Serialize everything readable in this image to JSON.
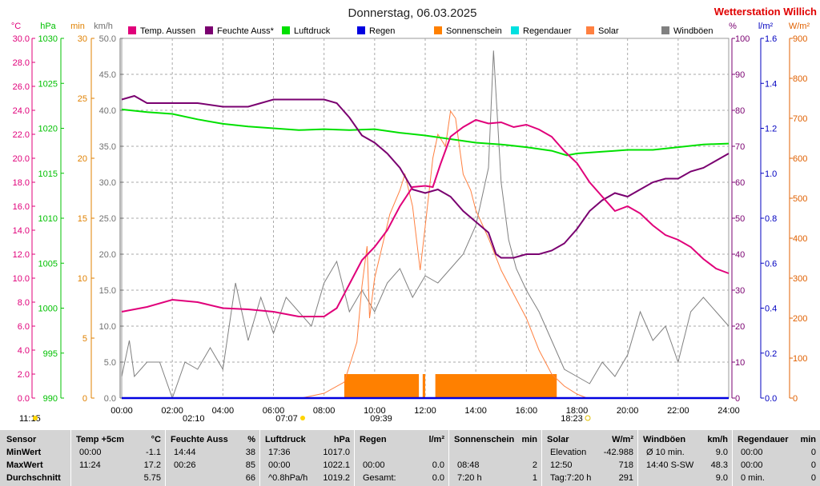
{
  "header": {
    "title": "Donnerstag, 06.03.2025",
    "station": "Wetterstation Willich"
  },
  "legend": [
    {
      "label": "Temp. Aussen",
      "color": "#e0007a"
    },
    {
      "label": "Feuchte Auss*",
      "color": "#7a0070"
    },
    {
      "label": "Luftdruck",
      "color": "#00e000"
    },
    {
      "label": "Regen",
      "color": "#0000e0"
    },
    {
      "label": "Sonnenschein",
      "color": "#ff8000"
    },
    {
      "label": "Regendauer",
      "color": "#00e0e0"
    },
    {
      "label": "Solar",
      "color": "#ff8040"
    },
    {
      "label": "Windböen",
      "color": "#808080"
    }
  ],
  "axes": {
    "temp": {
      "unit": "°C",
      "color": "#e0007a",
      "ticks": [
        "30.0",
        "28.0",
        "26.0",
        "24.0",
        "22.0",
        "20.0",
        "18.0",
        "16.0",
        "14.0",
        "12.0",
        "10.0",
        "8.0",
        "6.0",
        "4.0",
        "2.0",
        "0.0"
      ]
    },
    "press": {
      "unit": "hPa",
      "color": "#00c000",
      "ticks": [
        "1030",
        "1025",
        "1020",
        "1015",
        "1010",
        "1005",
        "1000",
        "995",
        "990"
      ]
    },
    "min": {
      "unit": "min",
      "color": "#e08000",
      "ticks": [
        "30",
        "25",
        "20",
        "15",
        "10",
        "5",
        "0"
      ]
    },
    "kmh": {
      "unit": "km/h",
      "color": "#707070",
      "ticks": [
        "50.0",
        "45.0",
        "40.0",
        "35.0",
        "30.0",
        "25.0",
        "20.0",
        "15.0",
        "10.0",
        "5.0",
        "0.0"
      ]
    },
    "hum": {
      "unit": "%",
      "color": "#7a0070",
      "ticks": [
        "100",
        "90",
        "80",
        "70",
        "60",
        "50",
        "40",
        "30",
        "20",
        "10",
        "0"
      ]
    },
    "rain": {
      "unit": "l/m²",
      "color": "#0000c0",
      "ticks": [
        "1.6",
        "1.4",
        "1.2",
        "1.0",
        "0.8",
        "0.6",
        "0.4",
        "0.2",
        "0.0"
      ]
    },
    "solar": {
      "unit": "W/m²",
      "color": "#e06000",
      "ticks": [
        "900",
        "800",
        "700",
        "600",
        "500",
        "400",
        "300",
        "200",
        "100",
        "0"
      ]
    },
    "time": {
      "ticks": [
        "00:00",
        "02:00",
        "04:00",
        "06:00",
        "08:00",
        "10:00",
        "12:00",
        "14:00",
        "16:00",
        "18:00",
        "20:00",
        "22:00",
        "24:00"
      ]
    }
  },
  "markers": {
    "moonrise": "11:15",
    "moonset": "02:10",
    "sunrise": "07:07",
    "noon": "09:39",
    "sunset": "18:23"
  },
  "chart_data": {
    "type": "line",
    "title": "Donnerstag, 06.03.2025",
    "xlim": [
      0,
      24
    ],
    "grid": true,
    "legend_position": "top",
    "series": [
      {
        "name": "Temp. Aussen",
        "axis": "temp",
        "ylim": [
          0,
          30
        ],
        "points": [
          [
            0,
            7.2
          ],
          [
            1,
            7.6
          ],
          [
            2,
            8.2
          ],
          [
            3,
            8.0
          ],
          [
            4,
            7.5
          ],
          [
            5,
            7.4
          ],
          [
            6,
            7.2
          ],
          [
            7,
            6.8
          ],
          [
            8,
            6.8
          ],
          [
            8.5,
            7.5
          ],
          [
            9,
            9.5
          ],
          [
            9.5,
            11.5
          ],
          [
            10,
            12.6
          ],
          [
            10.5,
            14.0
          ],
          [
            11,
            16.0
          ],
          [
            11.5,
            17.6
          ],
          [
            12,
            17.7
          ],
          [
            12.3,
            17.6
          ],
          [
            12.6,
            19.5
          ],
          [
            13,
            21.8
          ],
          [
            13.5,
            22.6
          ],
          [
            14,
            23.2
          ],
          [
            14.5,
            22.9
          ],
          [
            15,
            23.0
          ],
          [
            15.5,
            22.6
          ],
          [
            16,
            22.8
          ],
          [
            16.5,
            22.4
          ],
          [
            17,
            21.8
          ],
          [
            17.5,
            20.6
          ],
          [
            18,
            19.6
          ],
          [
            18.5,
            18.0
          ],
          [
            19,
            16.8
          ],
          [
            19.5,
            15.6
          ],
          [
            20,
            16.0
          ],
          [
            20.5,
            15.4
          ],
          [
            21,
            14.4
          ],
          [
            21.5,
            13.6
          ],
          [
            22,
            13.2
          ],
          [
            22.5,
            12.6
          ],
          [
            23,
            11.6
          ],
          [
            23.5,
            10.8
          ],
          [
            24,
            10.4
          ]
        ]
      },
      {
        "name": "Feuchte Auss*",
        "axis": "hum",
        "ylim": [
          0,
          100
        ],
        "points": [
          [
            0,
            83
          ],
          [
            0.5,
            84
          ],
          [
            1,
            82
          ],
          [
            1.5,
            82
          ],
          [
            2,
            82
          ],
          [
            3,
            82
          ],
          [
            4,
            81
          ],
          [
            5,
            81
          ],
          [
            5.5,
            82
          ],
          [
            6,
            83
          ],
          [
            7,
            83
          ],
          [
            8,
            83
          ],
          [
            8.5,
            82
          ],
          [
            9,
            78
          ],
          [
            9.5,
            73
          ],
          [
            10,
            71
          ],
          [
            10.5,
            68
          ],
          [
            11,
            64
          ],
          [
            11.5,
            58
          ],
          [
            12,
            57
          ],
          [
            12.5,
            58
          ],
          [
            13,
            56
          ],
          [
            13.5,
            52
          ],
          [
            14,
            49
          ],
          [
            14.5,
            46
          ],
          [
            14.8,
            40
          ],
          [
            15,
            39
          ],
          [
            15.5,
            39
          ],
          [
            16,
            40
          ],
          [
            16.5,
            40
          ],
          [
            17,
            41
          ],
          [
            17.5,
            43
          ],
          [
            18,
            47
          ],
          [
            18.5,
            52
          ],
          [
            19,
            55
          ],
          [
            19.5,
            57
          ],
          [
            20,
            56
          ],
          [
            20.5,
            58
          ],
          [
            21,
            60
          ],
          [
            21.5,
            61
          ],
          [
            22,
            61
          ],
          [
            22.5,
            63
          ],
          [
            23,
            64
          ],
          [
            23.5,
            66
          ],
          [
            24,
            68
          ]
        ]
      },
      {
        "name": "Luftdruck",
        "axis": "press",
        "ylim": [
          990,
          1030
        ],
        "points": [
          [
            0,
            1022.1
          ],
          [
            1,
            1021.8
          ],
          [
            2,
            1021.6
          ],
          [
            3,
            1021.0
          ],
          [
            4,
            1020.5
          ],
          [
            5,
            1020.2
          ],
          [
            6,
            1020.0
          ],
          [
            7,
            1019.8
          ],
          [
            8,
            1019.9
          ],
          [
            9,
            1019.8
          ],
          [
            10,
            1019.9
          ],
          [
            11,
            1019.5
          ],
          [
            12,
            1019.2
          ],
          [
            13,
            1018.8
          ],
          [
            14,
            1018.4
          ],
          [
            15,
            1018.2
          ],
          [
            16,
            1017.9
          ],
          [
            17,
            1017.5
          ],
          [
            17.6,
            1017.0
          ],
          [
            18,
            1017.2
          ],
          [
            19,
            1017.4
          ],
          [
            20,
            1017.6
          ],
          [
            21,
            1017.6
          ],
          [
            22,
            1017.9
          ],
          [
            23,
            1018.2
          ],
          [
            24,
            1018.3
          ]
        ]
      },
      {
        "name": "Solar",
        "axis": "solar",
        "ylim": [
          0,
          900
        ],
        "points": [
          [
            7.1,
            0
          ],
          [
            8,
            12
          ],
          [
            8.8,
            40
          ],
          [
            9,
            80
          ],
          [
            9.3,
            140
          ],
          [
            9.5,
            280
          ],
          [
            9.7,
            380
          ],
          [
            9.8,
            200
          ],
          [
            10,
            300
          ],
          [
            10.3,
            380
          ],
          [
            10.6,
            460
          ],
          [
            11,
            520
          ],
          [
            11.2,
            560
          ],
          [
            11.5,
            480
          ],
          [
            11.8,
            320
          ],
          [
            12,
            430
          ],
          [
            12.3,
            600
          ],
          [
            12.5,
            660
          ],
          [
            12.8,
            630
          ],
          [
            13,
            718
          ],
          [
            13.2,
            700
          ],
          [
            13.5,
            560
          ],
          [
            13.8,
            520
          ],
          [
            14,
            470
          ],
          [
            14.5,
            400
          ],
          [
            15,
            320
          ],
          [
            15.5,
            260
          ],
          [
            16,
            200
          ],
          [
            16.5,
            120
          ],
          [
            17,
            60
          ],
          [
            17.5,
            30
          ],
          [
            18,
            10
          ],
          [
            18.4,
            0
          ]
        ]
      },
      {
        "name": "Windböen",
        "axis": "kmh",
        "ylim": [
          0,
          50
        ],
        "points": [
          [
            0,
            3
          ],
          [
            0.3,
            8
          ],
          [
            0.5,
            3
          ],
          [
            1,
            5
          ],
          [
            1.5,
            5
          ],
          [
            2,
            0
          ],
          [
            2.5,
            5
          ],
          [
            3,
            4
          ],
          [
            3.5,
            7
          ],
          [
            4,
            4
          ],
          [
            4.5,
            16
          ],
          [
            5,
            8
          ],
          [
            5.5,
            14
          ],
          [
            6,
            9
          ],
          [
            6.5,
            14
          ],
          [
            7,
            12
          ],
          [
            7.5,
            10
          ],
          [
            8,
            16
          ],
          [
            8.5,
            19
          ],
          [
            9,
            12
          ],
          [
            9.5,
            15
          ],
          [
            10,
            12
          ],
          [
            10.5,
            16
          ],
          [
            11,
            18
          ],
          [
            11.5,
            14
          ],
          [
            12,
            17
          ],
          [
            12.5,
            16
          ],
          [
            13,
            18
          ],
          [
            13.5,
            20
          ],
          [
            14,
            24
          ],
          [
            14.5,
            32
          ],
          [
            14.7,
            48.3
          ],
          [
            15,
            30
          ],
          [
            15.3,
            22
          ],
          [
            15.6,
            18
          ],
          [
            16,
            15
          ],
          [
            16.5,
            12
          ],
          [
            17,
            8
          ],
          [
            17.5,
            4
          ],
          [
            18,
            3
          ],
          [
            18.5,
            2
          ],
          [
            19,
            5
          ],
          [
            19.5,
            3
          ],
          [
            20,
            6
          ],
          [
            20.5,
            12
          ],
          [
            21,
            8
          ],
          [
            21.5,
            10
          ],
          [
            22,
            5
          ],
          [
            22.5,
            12
          ],
          [
            23,
            14
          ],
          [
            23.5,
            12
          ],
          [
            24,
            10
          ]
        ]
      },
      {
        "name": "Regen",
        "axis": "rain",
        "ylim": [
          0,
          1.6
        ],
        "points": [
          [
            0,
            0
          ],
          [
            24,
            0
          ]
        ]
      },
      {
        "name": "Regendauer",
        "axis": "min",
        "ylim": [
          0,
          30
        ],
        "points": [
          [
            0,
            0
          ],
          [
            24,
            0
          ]
        ]
      }
    ],
    "sunshine_intervals": [
      [
        8.8,
        11.75
      ],
      [
        11.9,
        12.0
      ],
      [
        12.4,
        17.2
      ]
    ],
    "sunshine_level_min": 2
  },
  "table": {
    "row_labels": [
      "Sensor",
      "MinWert",
      "MaxWert",
      "Durchschnitt"
    ],
    "sections": [
      {
        "title": "Temp +5cm",
        "unit": "°C",
        "rows": [
          [
            "00:00",
            "-1.1"
          ],
          [
            "11:24",
            "17.2"
          ],
          [
            "",
            "5.75"
          ]
        ]
      },
      {
        "title": "Feuchte Auss",
        "unit": "%",
        "rows": [
          [
            "14:44",
            "38"
          ],
          [
            "00:26",
            "85"
          ],
          [
            "",
            "66"
          ]
        ]
      },
      {
        "title": "Luftdruck",
        "unit": "hPa",
        "rows": [
          [
            "17:36",
            "1017.0"
          ],
          [
            "00:00",
            "1022.1"
          ],
          [
            "^0.8hPa/h",
            "1019.2"
          ]
        ]
      },
      {
        "title": "Regen",
        "unit": "l/m²",
        "rows": [
          [
            "",
            ""
          ],
          [
            "00:00",
            "0.0"
          ],
          [
            "Gesamt:",
            "0.0"
          ]
        ]
      },
      {
        "title": "Sonnenschein",
        "unit": "min",
        "rows": [
          [
            "",
            ""
          ],
          [
            "08:48",
            "2"
          ],
          [
            "7:20 h",
            "1"
          ]
        ]
      },
      {
        "title": "Solar",
        "unit": "W/m²",
        "rows": [
          [
            "Elevation",
            "-42.988"
          ],
          [
            "12:50",
            "718"
          ],
          [
            "Tag:7:20 h",
            "291"
          ]
        ]
      },
      {
        "title": "Windböen",
        "unit": "km/h",
        "rows": [
          [
            "Ø 10 min.",
            "9.0"
          ],
          [
            "14:40  S-SW",
            "48.3"
          ],
          [
            "",
            "9.0"
          ]
        ]
      },
      {
        "title": "Regendauer",
        "unit": "min",
        "rows": [
          [
            "00:00",
            "0"
          ],
          [
            "00:00",
            "0"
          ],
          [
            "0 min.",
            "0"
          ]
        ]
      }
    ]
  }
}
